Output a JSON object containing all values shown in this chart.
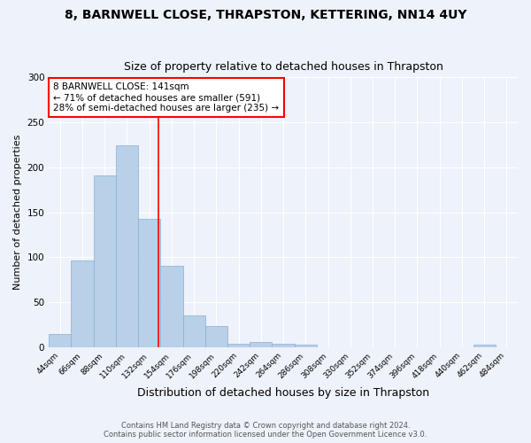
{
  "title": "8, BARNWELL CLOSE, THRAPSTON, KETTERING, NN14 4UY",
  "subtitle": "Size of property relative to detached houses in Thrapston",
  "xlabel": "Distribution of detached houses by size in Thrapston",
  "ylabel": "Number of detached properties",
  "categories": [
    "44sqm",
    "66sqm",
    "88sqm",
    "110sqm",
    "132sqm",
    "154sqm",
    "176sqm",
    "198sqm",
    "220sqm",
    "242sqm",
    "264sqm",
    "286sqm",
    "308sqm",
    "330sqm",
    "352sqm",
    "374sqm",
    "396sqm",
    "418sqm",
    "440sqm",
    "462sqm",
    "484sqm"
  ],
  "values": [
    15,
    96,
    191,
    224,
    143,
    90,
    35,
    23,
    4,
    6,
    4,
    3,
    0,
    0,
    0,
    0,
    0,
    0,
    0,
    3,
    0
  ],
  "bar_color": "#b8d0e8",
  "bar_edge_color": "#8ab0d0",
  "annotation_text": "8 BARNWELL CLOSE: 141sqm\n← 71% of detached houses are smaller (591)\n28% of semi-detached houses are larger (235) →",
  "annotation_box_color": "white",
  "annotation_box_edge": "red",
  "vline_color": "red",
  "ylim": [
    0,
    300
  ],
  "yticks": [
    0,
    50,
    100,
    150,
    200,
    250,
    300
  ],
  "footer": "Contains HM Land Registry data © Crown copyright and database right 2024.\nContains public sector information licensed under the Open Government Licence v3.0.",
  "title_fontsize": 10,
  "subtitle_fontsize": 9,
  "xlabel_fontsize": 9,
  "ylabel_fontsize": 8,
  "background_color": "#eef2fa"
}
